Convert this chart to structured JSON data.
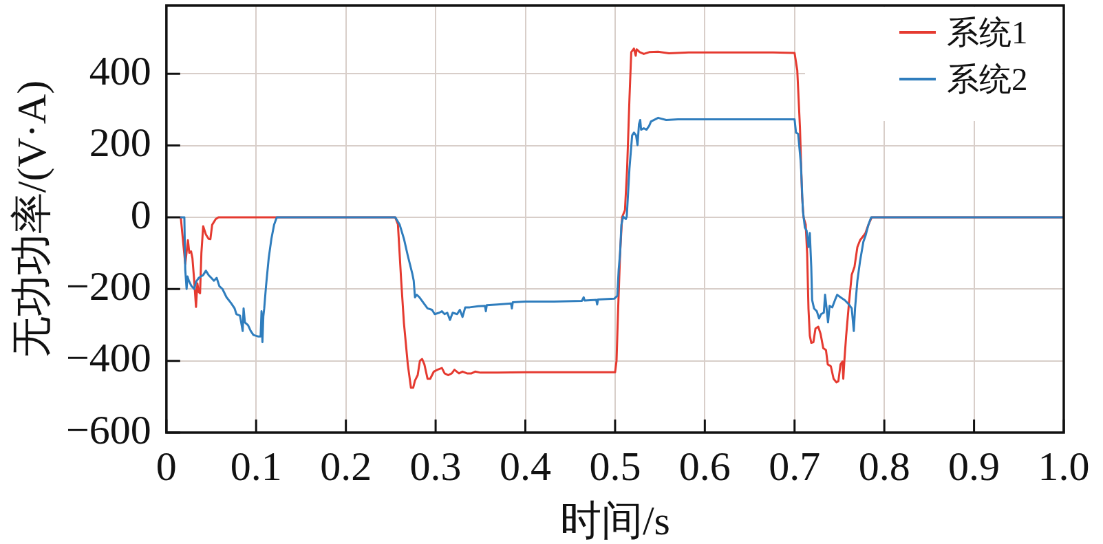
{
  "chart_data": {
    "type": "line",
    "xlabel": "时间/s",
    "ylabel": "无功功率/(V·A)",
    "xlim": [
      0,
      1
    ],
    "xticks": [
      0,
      0.1,
      0.2,
      0.3,
      0.4,
      0.5,
      0.6,
      0.7,
      0.8,
      0.9,
      {
        "value": 1,
        "label": "1.0"
      }
    ],
    "ylim": [
      -600,
      590
    ],
    "yticks": [
      {
        "value": -600,
        "label": "−600"
      },
      {
        "value": -400,
        "label": "−400"
      },
      {
        "value": -200,
        "label": "−200"
      },
      0,
      200,
      400
    ],
    "grid": true,
    "legend": "top right",
    "series": [
      {
        "name": "系统1",
        "color": "#e53a30",
        "x": [
          0.016,
          0.021,
          0.024,
          0.0255,
          0.0275,
          0.029,
          0.031,
          0.033,
          0.0345,
          0.036,
          0.0375,
          0.039,
          0.041,
          0.044,
          0.047,
          0.049,
          0.051,
          0.055,
          0.058,
          0.255,
          0.258,
          0.2616,
          0.2647,
          0.269,
          0.2725,
          0.275,
          0.277,
          0.28,
          0.2825,
          0.285,
          0.2875,
          0.291,
          0.294,
          0.298,
          0.302,
          0.307,
          0.31,
          0.314,
          0.318,
          0.321,
          0.326,
          0.33,
          0.335,
          0.34,
          0.344,
          0.35,
          0.369,
          0.4,
          0.45,
          0.5,
          0.5016,
          0.5034,
          0.5056,
          0.5078,
          0.511,
          0.5134,
          0.516,
          0.518,
          0.521,
          0.523,
          0.524,
          0.5275,
          0.532,
          0.538,
          0.548,
          0.56,
          0.582,
          0.613,
          0.676,
          0.7,
          0.703,
          0.706,
          0.7084,
          0.71,
          0.7124,
          0.714,
          0.7155,
          0.717,
          0.7186,
          0.721,
          0.7233,
          0.7264,
          0.729,
          0.732,
          0.735,
          0.737,
          0.7404,
          0.7435,
          0.7466,
          0.7488,
          0.7512,
          0.7534,
          0.7543,
          0.7555,
          0.7575,
          0.7606,
          0.7637,
          0.7668,
          0.77,
          0.773,
          0.7767,
          0.779,
          0.7823,
          0.786,
          1
        ],
        "values": [
          0,
          -130,
          -64,
          -99,
          -95,
          -114,
          -177,
          -250,
          -184,
          -208,
          -212,
          -99,
          -25,
          -48,
          -60,
          -61,
          -21,
          -5,
          0,
          0,
          -20,
          -175,
          -295,
          -410,
          -475,
          -475,
          -455,
          -440,
          -400,
          -395,
          -410,
          -450,
          -450,
          -430,
          -425,
          -420,
          -435,
          -440,
          -435,
          -425,
          -435,
          -430,
          -435,
          -435,
          -430,
          -433,
          -433,
          -432,
          -432,
          -432,
          -400,
          -255,
          -100,
          0,
          20,
          135,
          330,
          460,
          470,
          450,
          468,
          460,
          455,
          460,
          461,
          457,
          459,
          459,
          459,
          458,
          410,
          250,
          57,
          0,
          -20,
          -100,
          -255,
          -330,
          -350,
          -348,
          -310,
          -305,
          -325,
          -365,
          -370,
          -410,
          -415,
          -450,
          -460,
          -457,
          -410,
          -402,
          -450,
          -400,
          -330,
          -240,
          -160,
          -138,
          -83,
          -64,
          -52,
          -44,
          -21,
          0,
          0
        ]
      },
      {
        "name": "系统2",
        "color": "#2f7dbd",
        "x": [
          0.016,
          0.02,
          0.021,
          0.0225,
          0.0235,
          0.025,
          0.028,
          0.031,
          0.033,
          0.036,
          0.041,
          0.044,
          0.047,
          0.05,
          0.053,
          0.056,
          0.059,
          0.0625,
          0.067,
          0.072,
          0.076,
          0.078,
          0.082,
          0.085,
          0.086,
          0.0875,
          0.091,
          0.094,
          0.097,
          0.102,
          0.105,
          0.106,
          0.107,
          0.108,
          0.109,
          0.111,
          0.114,
          0.117,
          0.12,
          0.123,
          0.255,
          0.26,
          0.2647,
          0.269,
          0.274,
          0.2756,
          0.277,
          0.279,
          0.282,
          0.2866,
          0.291,
          0.296,
          0.299,
          0.304,
          0.307,
          0.31,
          0.313,
          0.316,
          0.319,
          0.324,
          0.327,
          0.33,
          0.333,
          0.338,
          0.3475,
          0.355,
          0.356,
          0.357,
          0.369,
          0.384,
          0.385,
          0.386,
          0.4,
          0.432,
          0.463,
          0.465,
          0.466,
          0.479,
          0.48,
          0.481,
          0.499,
          0.5025,
          0.504,
          0.5056,
          0.507,
          0.509,
          0.512,
          0.513,
          0.516,
          0.519,
          0.521,
          0.5234,
          0.525,
          0.5266,
          0.528,
          0.529,
          0.532,
          0.535,
          0.538,
          0.54,
          0.548,
          0.557,
          0.57,
          0.613,
          0.7,
          0.7016,
          0.704,
          0.707,
          0.7093,
          0.7115,
          0.7134,
          0.7155,
          0.717,
          0.7186,
          0.7196,
          0.7217,
          0.7248,
          0.7273,
          0.7295,
          0.7326,
          0.734,
          0.7357,
          0.7373,
          0.739,
          0.742,
          0.745,
          0.7475,
          0.7512,
          0.756,
          0.7606,
          0.7637,
          0.766,
          0.7674,
          0.77,
          0.773,
          0.7767,
          0.779,
          0.7823,
          0.7854,
          1
        ],
        "values": [
          0,
          0,
          -146,
          -200,
          -165,
          -177,
          -192,
          -200,
          -180,
          -169,
          -161,
          -149,
          -161,
          -169,
          -177,
          -169,
          -192,
          -200,
          -223,
          -239,
          -254,
          -270,
          -274,
          -317,
          -254,
          -293,
          -301,
          -317,
          -328,
          -332,
          -332,
          -262,
          -348,
          -277,
          -254,
          -192,
          -114,
          -60,
          -21,
          0,
          0,
          -21,
          -60,
          -107,
          -157,
          -177,
          -223,
          -216,
          -223,
          -239,
          -254,
          -258,
          -270,
          -266,
          -262,
          -270,
          -266,
          -286,
          -266,
          -270,
          -258,
          -278,
          -251,
          -251,
          -248,
          -247,
          -262,
          -245,
          -243,
          -240,
          -254,
          -237,
          -235,
          -235,
          -233,
          -223,
          -232,
          -230,
          -243,
          -229,
          -227,
          -219,
          -146,
          -99,
          -21,
          2,
          -5,
          2,
          135,
          228,
          236,
          228,
          201,
          259,
          271,
          244,
          248,
          244,
          255,
          267,
          277,
          271,
          273,
          273,
          273,
          236,
          232,
          150,
          18,
          -29,
          -37,
          -83,
          -44,
          -138,
          -231,
          -254,
          -262,
          -282,
          -270,
          -266,
          -216,
          -254,
          -293,
          -247,
          -251,
          -231,
          -216,
          -223,
          -231,
          -243,
          -254,
          -317,
          -254,
          -177,
          -122,
          -68,
          -52,
          -21,
          0,
          0
        ]
      }
    ]
  }
}
